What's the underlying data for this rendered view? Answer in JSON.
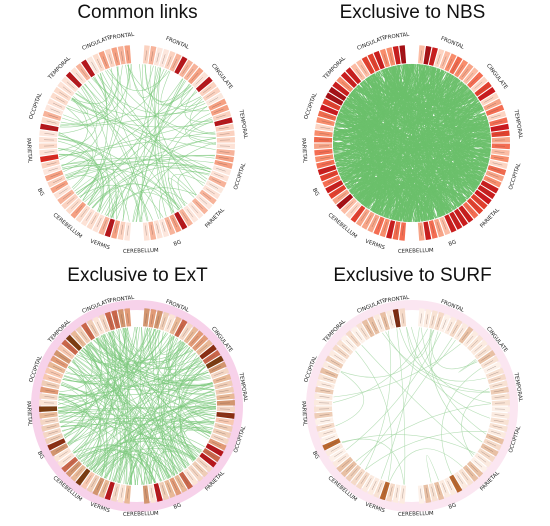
{
  "panels": [
    {
      "title": "Common links",
      "lobes": [
        "FRONTAL",
        "CINGULATE",
        "TEMPORAL",
        "OCCIPITAL",
        "PARIETAL",
        "BG",
        "CEREBELLUM",
        "VERMIS",
        "CEREBELLUM",
        "BG",
        "PARIETAL",
        "OCCIPITAL",
        "TEMPORAL",
        "CINGULATE",
        "FRONTAL"
      ],
      "palette": [
        "#fde2d6",
        "#fbd2c0",
        "#fbe8de",
        "#f7b39a",
        "#fde6dc",
        "#f5a082",
        "#fcdccc"
      ],
      "accent": [
        "#d9281f",
        "#b5161b"
      ],
      "link_color": "#7fc97f",
      "link_density": "sparse",
      "outer_ring": "none"
    },
    {
      "title": "Exclusive to NBS",
      "lobes": [
        "FRONTAL",
        "CINGULATE",
        "TEMPORAL",
        "OCCIPITAL",
        "PARIETAL",
        "BG",
        "CEREBELLUM",
        "VERMIS",
        "CEREBELLUM",
        "BG",
        "PARIETAL",
        "OCCIPITAL",
        "TEMPORAL",
        "CINGULATE",
        "FRONTAL"
      ],
      "palette": [
        "#f7a487",
        "#ef6a4d",
        "#fcbca4",
        "#e2402e",
        "#f88d6c",
        "#fdd4c2",
        "#c91d1d",
        "#f46d52"
      ],
      "accent": [
        "#a50f15",
        "#cb181d"
      ],
      "link_color": "#6cc06c",
      "link_density": "dense",
      "outer_ring": "none"
    },
    {
      "title": "Exclusive to ExT",
      "lobes": [
        "FRONTAL",
        "CINGULATE",
        "TEMPORAL",
        "OCCIPITAL",
        "PARIETAL",
        "BG",
        "CEREBELLUM",
        "VERMIS",
        "CEREBELLUM",
        "BG",
        "PARIETAL",
        "OCCIPITAL",
        "TEMPORAL",
        "CINGULATE",
        "FRONTAL"
      ],
      "palette": [
        "#f4d6c4",
        "#e8b896",
        "#d2956f",
        "#f7c8b0",
        "#c9674b",
        "#efcdb6",
        "#e19a76",
        "#fbe4d6"
      ],
      "accent": [
        "#8a2e12",
        "#b5161b",
        "#7a3b10"
      ],
      "link_color": "#7fc97f",
      "link_density": "medium",
      "outer_ring": "#f7d2ea"
    },
    {
      "title": "Exclusive to SURF",
      "lobes": [
        "FRONTAL",
        "CINGULATE",
        "TEMPORAL",
        "OCCIPITAL",
        "PARIETAL",
        "BG",
        "CEREBELLUM",
        "VERMIS",
        "CEREBELLUM",
        "BG",
        "PARIETAL",
        "OCCIPITAL",
        "TEMPORAL",
        "CINGULATE",
        "FRONTAL"
      ],
      "palette": [
        "#fbeadf",
        "#f5dac8",
        "#fdf1e9",
        "#eecdb6",
        "#f8e2d3",
        "#e8c0a4",
        "#fcebe0"
      ],
      "accent": [
        "#9b3412",
        "#7a2a10",
        "#b8672f"
      ],
      "link_color": "#9fd49f",
      "link_density": "very-sparse",
      "outer_ring": "#fbe6f1"
    }
  ]
}
